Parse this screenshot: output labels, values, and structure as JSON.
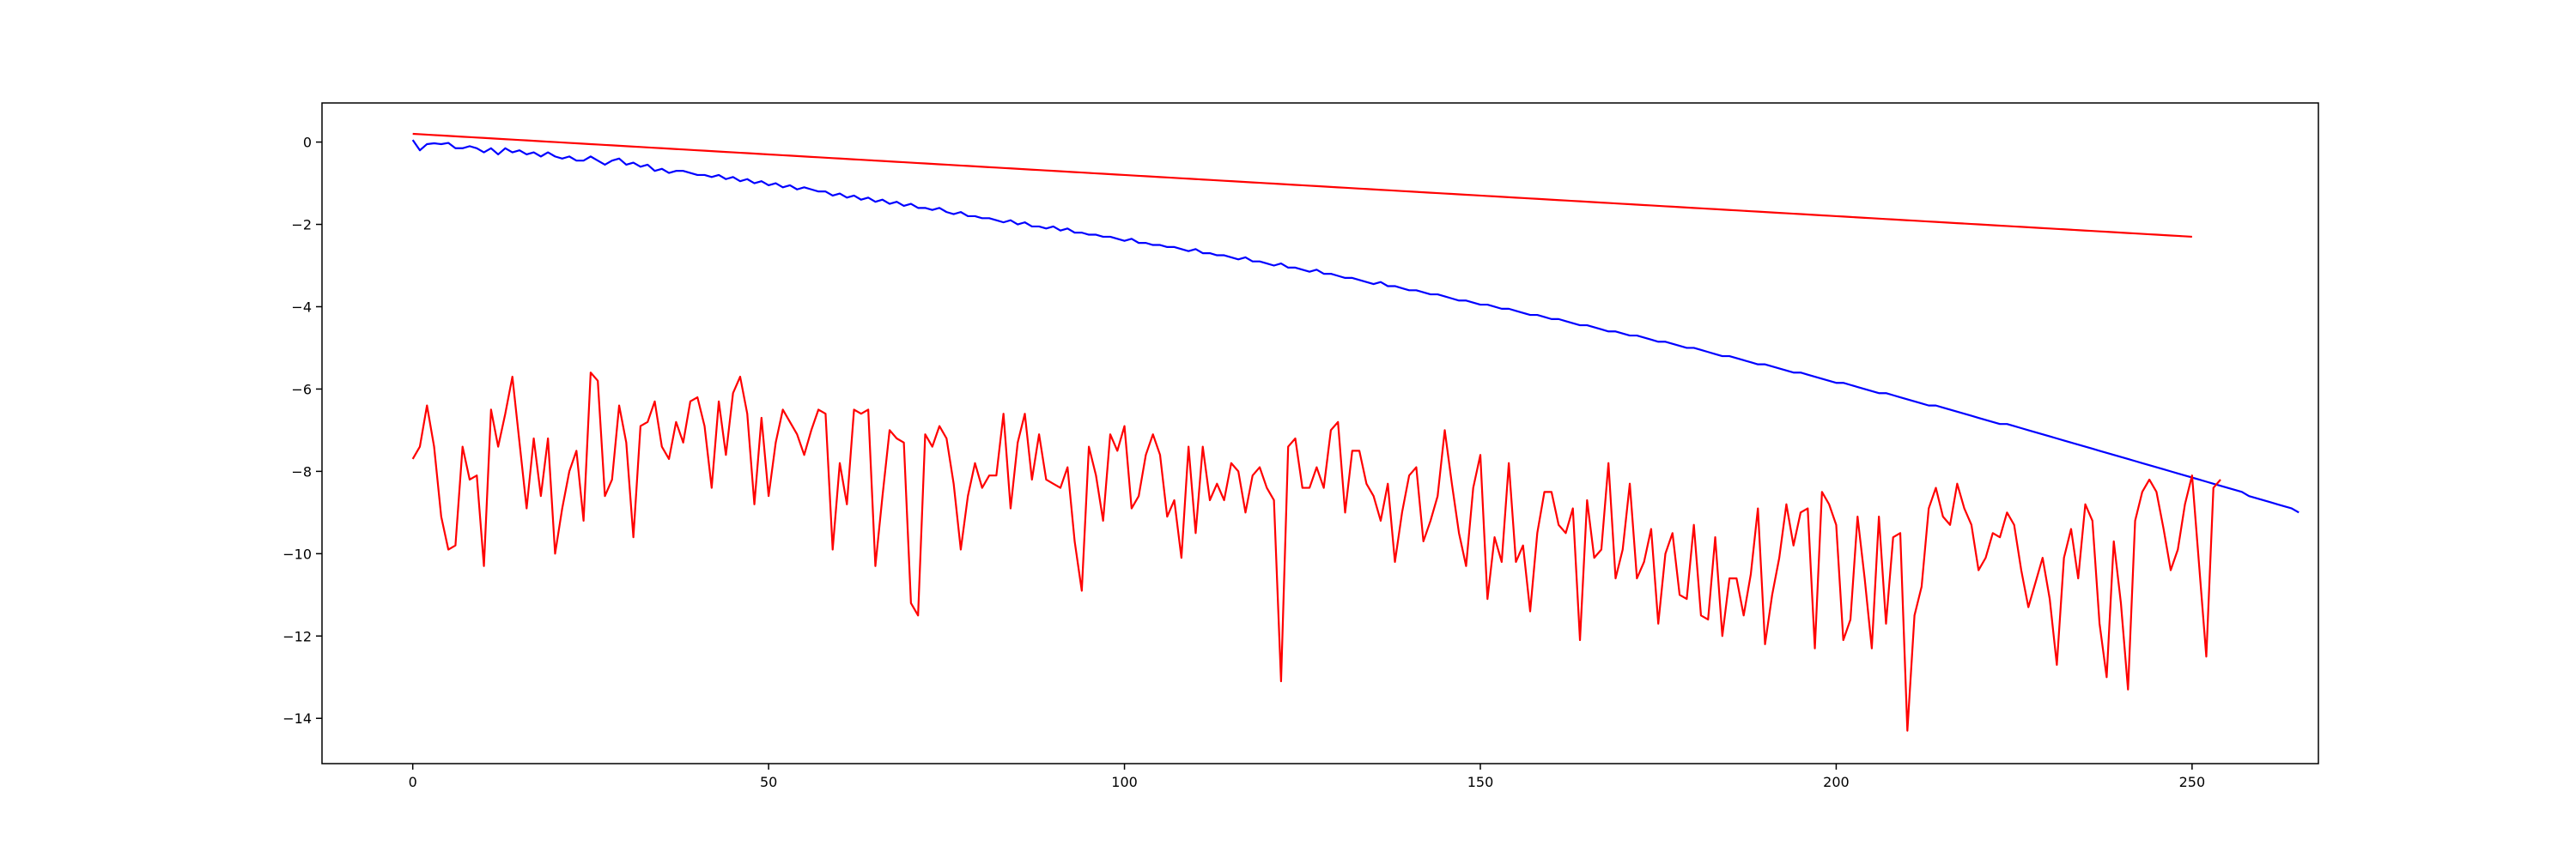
{
  "chart_data": {
    "type": "line",
    "title": "",
    "xlabel": "",
    "ylabel": "",
    "xlim": [
      -12.75,
      267.75
    ],
    "ylim": [
      -15.1,
      0.95
    ],
    "grid": false,
    "legend": "none",
    "x_ticks": [
      0,
      50,
      100,
      150,
      200,
      250
    ],
    "y_ticks": [
      0,
      -2,
      -4,
      -6,
      -8,
      -10,
      -12,
      -14
    ],
    "series": [
      {
        "color": "#0000ff",
        "x_start": 0,
        "x_step": 1,
        "values": [
          0.05,
          -0.2,
          -0.05,
          -0.03,
          -0.05,
          -0.02,
          -0.15,
          -0.15,
          -0.1,
          -0.15,
          -0.25,
          -0.15,
          -0.3,
          -0.15,
          -0.25,
          -0.2,
          -0.3,
          -0.25,
          -0.35,
          -0.25,
          -0.35,
          -0.4,
          -0.35,
          -0.45,
          -0.45,
          -0.35,
          -0.45,
          -0.55,
          -0.45,
          -0.4,
          -0.55,
          -0.5,
          -0.6,
          -0.55,
          -0.7,
          -0.65,
          -0.75,
          -0.7,
          -0.7,
          -0.75,
          -0.8,
          -0.8,
          -0.85,
          -0.8,
          -0.9,
          -0.85,
          -0.95,
          -0.9,
          -1.0,
          -0.95,
          -1.05,
          -1.0,
          -1.1,
          -1.05,
          -1.15,
          -1.1,
          -1.15,
          -1.2,
          -1.2,
          -1.3,
          -1.25,
          -1.35,
          -1.3,
          -1.4,
          -1.35,
          -1.45,
          -1.4,
          -1.5,
          -1.45,
          -1.55,
          -1.5,
          -1.6,
          -1.6,
          -1.65,
          -1.6,
          -1.7,
          -1.75,
          -1.7,
          -1.8,
          -1.8,
          -1.85,
          -1.85,
          -1.9,
          -1.95,
          -1.9,
          -2.0,
          -1.95,
          -2.05,
          -2.05,
          -2.1,
          -2.05,
          -2.15,
          -2.1,
          -2.2,
          -2.2,
          -2.25,
          -2.25,
          -2.3,
          -2.3,
          -2.35,
          -2.4,
          -2.35,
          -2.45,
          -2.45,
          -2.5,
          -2.5,
          -2.55,
          -2.55,
          -2.6,
          -2.65,
          -2.6,
          -2.7,
          -2.7,
          -2.75,
          -2.75,
          -2.8,
          -2.85,
          -2.8,
          -2.9,
          -2.9,
          -2.95,
          -3.0,
          -2.95,
          -3.05,
          -3.05,
          -3.1,
          -3.15,
          -3.1,
          -3.2,
          -3.2,
          -3.25,
          -3.3,
          -3.3,
          -3.35,
          -3.4,
          -3.45,
          -3.4,
          -3.5,
          -3.5,
          -3.55,
          -3.6,
          -3.6,
          -3.65,
          -3.7,
          -3.7,
          -3.75,
          -3.8,
          -3.85,
          -3.85,
          -3.9,
          -3.95,
          -3.95,
          -4.0,
          -4.05,
          -4.05,
          -4.1,
          -4.15,
          -4.2,
          -4.2,
          -4.25,
          -4.3,
          -4.3,
          -4.35,
          -4.4,
          -4.45,
          -4.45,
          -4.5,
          -4.55,
          -4.6,
          -4.6,
          -4.65,
          -4.7,
          -4.7,
          -4.75,
          -4.8,
          -4.85,
          -4.85,
          -4.9,
          -4.95,
          -5.0,
          -5.0,
          -5.05,
          -5.1,
          -5.15,
          -5.2,
          -5.2,
          -5.25,
          -5.3,
          -5.35,
          -5.4,
          -5.4,
          -5.45,
          -5.5,
          -5.55,
          -5.6,
          -5.6,
          -5.65,
          -5.7,
          -5.75,
          -5.8,
          -5.85,
          -5.85,
          -5.9,
          -5.95,
          -6.0,
          -6.05,
          -6.1,
          -6.1,
          -6.15,
          -6.2,
          -6.25,
          -6.3,
          -6.35,
          -6.4,
          -6.4,
          -6.45,
          -6.5,
          -6.55,
          -6.6,
          -6.65,
          -6.7,
          -6.75,
          -6.8,
          -6.85,
          -6.85,
          -6.9,
          -6.95,
          -7.0,
          -7.05,
          -7.1,
          -7.15,
          -7.2,
          -7.25,
          -7.3,
          -7.35,
          -7.4,
          -7.45,
          -7.5,
          -7.55,
          -7.6,
          -7.65,
          -7.7,
          -7.75,
          -7.8,
          -7.85,
          -7.9,
          -7.95,
          -8.0,
          -8.05,
          -8.1,
          -8.15,
          -8.2,
          -8.25,
          -8.3,
          -8.35,
          -8.4,
          -8.45,
          -8.5,
          -8.6,
          -8.65,
          -8.7,
          -8.75,
          -8.8,
          -8.85,
          -8.9,
          -9.0
        ]
      },
      {
        "color": "#ff0000",
        "x_start": 0,
        "x_step": 1,
        "values": [
          0.2,
          0.19,
          0.18,
          0.17,
          0.16,
          0.15,
          0.14,
          0.13,
          0.12,
          0.11,
          0.1,
          0.09,
          0.08,
          0.07,
          0.06,
          0.05,
          0.04,
          0.03,
          0.02,
          0.01,
          0.0,
          -0.01,
          -0.02,
          -0.03,
          -0.04,
          -0.05,
          -0.06,
          -0.07,
          -0.08,
          -0.09,
          -0.1,
          -0.11,
          -0.12,
          -0.13,
          -0.14,
          -0.15,
          -0.16,
          -0.17,
          -0.18,
          -0.19,
          -0.2,
          -0.21,
          -0.22,
          -0.23,
          -0.24,
          -0.25,
          -0.26,
          -0.27,
          -0.28,
          -0.29,
          -0.3,
          -0.31,
          -0.32,
          -0.33,
          -0.34,
          -0.35,
          -0.36,
          -0.37,
          -0.38,
          -0.39,
          -0.4,
          -0.41,
          -0.42,
          -0.43,
          -0.44,
          -0.45,
          -0.46,
          -0.47,
          -0.48,
          -0.49,
          -0.5,
          -0.51,
          -0.52,
          -0.53,
          -0.54,
          -0.55,
          -0.56,
          -0.57,
          -0.58,
          -0.59,
          -0.6,
          -0.61,
          -0.62,
          -0.63,
          -0.64,
          -0.65,
          -0.66,
          -0.67,
          -0.68,
          -0.69,
          -0.7,
          -0.71,
          -0.72,
          -0.73,
          -0.74,
          -0.75,
          -0.76,
          -0.77,
          -0.78,
          -0.79,
          -0.8,
          -0.81,
          -0.82,
          -0.83,
          -0.84,
          -0.85,
          -0.86,
          -0.87,
          -0.88,
          -0.89,
          -0.9,
          -0.91,
          -0.92,
          -0.93,
          -0.94,
          -0.95,
          -0.96,
          -0.97,
          -0.98,
          -0.99,
          -1.0,
          -1.01,
          -1.02,
          -1.03,
          -1.04,
          -1.05,
          -1.06,
          -1.07,
          -1.08,
          -1.09,
          -1.1,
          -1.11,
          -1.12,
          -1.13,
          -1.14,
          -1.15,
          -1.16,
          -1.17,
          -1.18,
          -1.19,
          -1.2,
          -1.21,
          -1.22,
          -1.23,
          -1.24,
          -1.25,
          -1.26,
          -1.27,
          -1.28,
          -1.29,
          -1.3,
          -1.31,
          -1.32,
          -1.33,
          -1.34,
          -1.35,
          -1.36,
          -1.37,
          -1.38,
          -1.39,
          -1.4,
          -1.41,
          -1.42,
          -1.43,
          -1.44,
          -1.45,
          -1.46,
          -1.47,
          -1.48,
          -1.49,
          -1.5,
          -1.51,
          -1.52,
          -1.53,
          -1.54,
          -1.55,
          -1.56,
          -1.57,
          -1.58,
          -1.59,
          -1.6,
          -1.61,
          -1.62,
          -1.63,
          -1.64,
          -1.65,
          -1.66,
          -1.67,
          -1.68,
          -1.69,
          -1.7,
          -1.71,
          -1.72,
          -1.73,
          -1.74,
          -1.75,
          -1.76,
          -1.77,
          -1.78,
          -1.79,
          -1.8,
          -1.81,
          -1.82,
          -1.83,
          -1.84,
          -1.85,
          -1.86,
          -1.87,
          -1.88,
          -1.89,
          -1.9,
          -1.91,
          -1.92,
          -1.93,
          -1.94,
          -1.95,
          -1.96,
          -1.97,
          -1.98,
          -1.99,
          -2.0,
          -2.01,
          -2.02,
          -2.03,
          -2.04,
          -2.05,
          -2.06,
          -2.07,
          -2.08,
          -2.09,
          -2.1,
          -2.11,
          -2.12,
          -2.13,
          -2.14,
          -2.15,
          -2.16,
          -2.17,
          -2.18,
          -2.19,
          -2.2,
          -2.21,
          -2.22,
          -2.23,
          -2.24,
          -2.25,
          -2.26,
          -2.27,
          -2.28,
          -2.29,
          -2.3
        ]
      },
      {
        "color": "#ff0000",
        "x_start": 0,
        "x_step": 1,
        "values": [
          -7.7,
          -7.4,
          -6.4,
          -7.4,
          -9.1,
          -9.9,
          -9.8,
          -7.4,
          -8.2,
          -8.1,
          -10.3,
          -6.5,
          -7.4,
          -6.6,
          -5.7,
          -7.3,
          -8.9,
          -7.2,
          -8.6,
          -7.2,
          -10.0,
          -8.9,
          -8.0,
          -7.5,
          -9.2,
          -5.6,
          -5.8,
          -8.6,
          -8.2,
          -6.4,
          -7.3,
          -9.6,
          -6.9,
          -6.8,
          -6.3,
          -7.4,
          -7.7,
          -6.8,
          -7.3,
          -6.3,
          -6.2,
          -6.9,
          -8.4,
          -6.3,
          -7.6,
          -6.1,
          -5.7,
          -6.6,
          -8.8,
          -6.7,
          -8.6,
          -7.3,
          -6.5,
          -6.8,
          -7.1,
          -7.6,
          -7.0,
          -6.5,
          -6.6,
          -9.9,
          -7.8,
          -8.8,
          -6.5,
          -6.6,
          -6.5,
          -10.3,
          -8.6,
          -7.0,
          -7.2,
          -7.3,
          -11.2,
          -11.5,
          -7.1,
          -7.4,
          -6.9,
          -7.2,
          -8.3,
          -9.9,
          -8.6,
          -7.8,
          -8.4,
          -8.1,
          -8.1,
          -6.6,
          -8.9,
          -7.3,
          -6.6,
          -8.2,
          -7.1,
          -8.2,
          -8.3,
          -8.4,
          -7.9,
          -9.7,
          -10.9,
          -7.4,
          -8.1,
          -9.2,
          -7.1,
          -7.5,
          -6.9,
          -8.9,
          -8.6,
          -7.6,
          -7.1,
          -7.6,
          -9.1,
          -8.7,
          -10.1,
          -7.4,
          -9.5,
          -7.4,
          -8.7,
          -8.3,
          -8.7,
          -7.8,
          -8.0,
          -9.0,
          -8.1,
          -7.9,
          -8.4,
          -8.7,
          -13.1,
          -7.4,
          -7.2,
          -8.4,
          -8.4,
          -7.9,
          -8.4,
          -7.0,
          -6.8,
          -9.0,
          -7.5,
          -7.5,
          -8.3,
          -8.6,
          -9.2,
          -8.3,
          -10.2,
          -9.0,
          -8.1,
          -7.9,
          -9.7,
          -9.2,
          -8.6,
          -7.0,
          -8.3,
          -9.5,
          -10.3,
          -8.4,
          -7.6,
          -11.1,
          -9.6,
          -10.2,
          -7.8,
          -10.2,
          -9.8,
          -11.4,
          -9.5,
          -8.5,
          -8.5,
          -9.3,
          -9.5,
          -8.9,
          -12.1,
          -8.7,
          -10.1,
          -9.9,
          -7.8,
          -10.6,
          -9.9,
          -8.3,
          -10.6,
          -10.2,
          -9.4,
          -11.7,
          -10.0,
          -9.5,
          -11.0,
          -11.1,
          -9.3,
          -11.5,
          -11.6,
          -9.6,
          -12.0,
          -10.6,
          -10.6,
          -11.5,
          -10.5,
          -8.9,
          -12.2,
          -11.0,
          -10.1,
          -8.8,
          -9.8,
          -9.0,
          -8.9,
          -12.3,
          -8.5,
          -8.8,
          -9.3,
          -12.1,
          -11.6,
          -9.1,
          -10.6,
          -12.3,
          -9.1,
          -11.7,
          -9.6,
          -9.5,
          -14.3,
          -11.5,
          -10.8,
          -8.9,
          -8.4,
          -9.1,
          -9.3,
          -8.3,
          -8.9,
          -9.3,
          -10.4,
          -10.1,
          -9.5,
          -9.6,
          -9.0,
          -9.3,
          -10.4,
          -11.3,
          -10.7,
          -10.1,
          -11.1,
          -12.7,
          -10.1,
          -9.4,
          -10.6,
          -8.8,
          -9.2,
          -11.7,
          -13.0,
          -9.7,
          -11.2,
          -13.3,
          -9.2,
          -8.5,
          -8.2,
          -8.5,
          -9.4,
          -10.4,
          -9.9,
          -8.8,
          -8.1,
          -10.3,
          -12.5,
          -8.4,
          -8.2
        ]
      }
    ]
  }
}
